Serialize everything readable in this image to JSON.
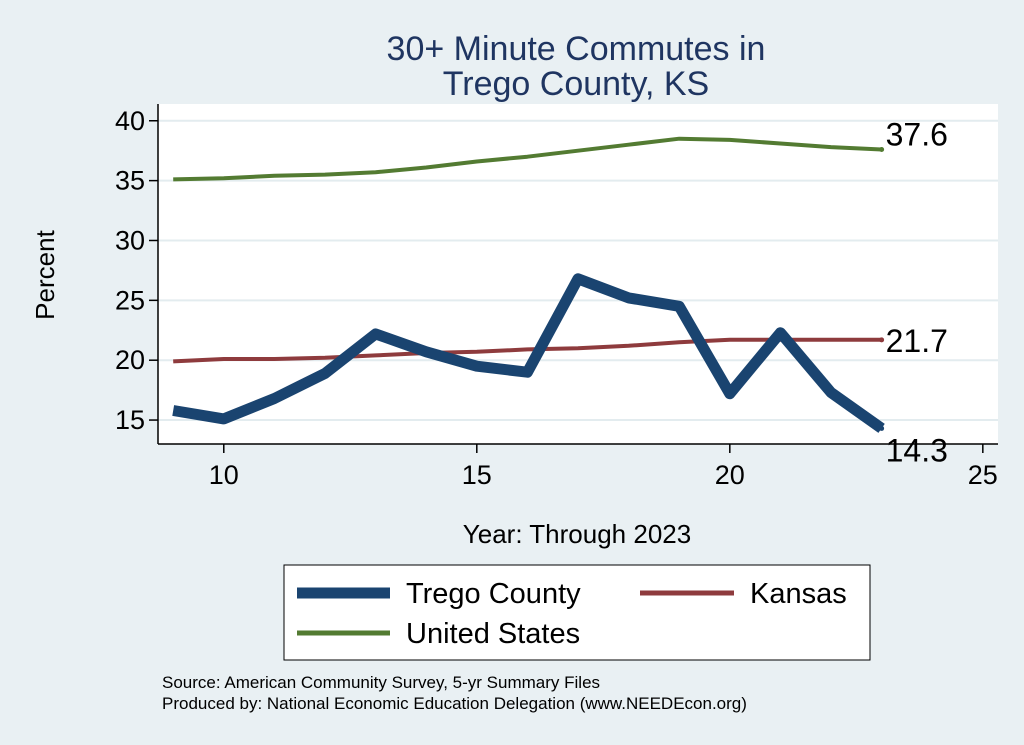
{
  "chart_data": {
    "type": "line",
    "title": [
      "30+ Minute Commutes in",
      "Trego County, KS"
    ],
    "xlabel": "Year: Through 2023",
    "ylabel": "Percent",
    "xlim": [
      8.7,
      25.3
    ],
    "ylim": [
      13.0,
      41.4
    ],
    "xticks": [
      10,
      15,
      20,
      25
    ],
    "yticks": [
      15,
      20,
      25,
      30,
      35,
      40
    ],
    "grid": true,
    "x": [
      9,
      10,
      11,
      12,
      13,
      14,
      15,
      16,
      17,
      18,
      19,
      20,
      21,
      22,
      23
    ],
    "series": [
      {
        "name": "Trego County",
        "color": "#1a4470",
        "width": 11,
        "values": [
          15.8,
          15.1,
          16.8,
          18.9,
          22.2,
          20.7,
          19.5,
          19.0,
          26.8,
          25.2,
          24.5,
          17.2,
          22.3,
          17.3,
          14.3
        ],
        "end_label": "14.3"
      },
      {
        "name": "Kansas",
        "color": "#8e3b3d",
        "width": 4,
        "values": [
          19.9,
          20.1,
          20.1,
          20.2,
          20.4,
          20.6,
          20.7,
          20.9,
          21.0,
          21.2,
          21.5,
          21.7,
          21.7,
          21.7,
          21.7
        ],
        "end_label": "21.7"
      },
      {
        "name": "United States",
        "color": "#537b32",
        "width": 4,
        "values": [
          35.1,
          35.2,
          35.4,
          35.5,
          35.7,
          36.1,
          36.6,
          37.0,
          37.5,
          38.0,
          38.5,
          38.4,
          38.1,
          37.8,
          37.6
        ],
        "end_label": "37.6"
      }
    ],
    "legend": {
      "placement": "bottom",
      "entries": [
        "Trego County",
        "Kansas",
        "United States"
      ]
    },
    "notes": [
      "Source: American Community Survey, 5-yr Summary Files",
      "Produced by: National Economic Education Delegation (www.NEEDEcon.org)"
    ]
  }
}
